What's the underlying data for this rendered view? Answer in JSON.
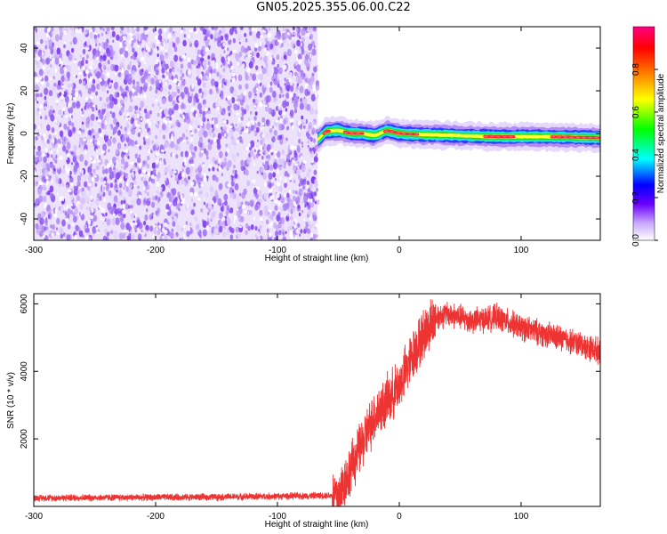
{
  "figure": {
    "title": "GN05.2025.355.06.00.C22"
  },
  "chart_data": [
    {
      "type": "heatmap",
      "xlabel": "Height of straight line (km)",
      "ylabel": "Frequency (Hz)",
      "xlim": [
        -300,
        165
      ],
      "ylim": [
        -50,
        50
      ],
      "xticks": [
        -300,
        -200,
        -100,
        0,
        100
      ],
      "yticks": [
        -40,
        -20,
        0,
        20,
        40
      ],
      "colorbar": {
        "label": "Normalized spectral amplitude",
        "range": [
          0.0,
          1.0
        ],
        "ticks": [
          0.0,
          0.2,
          0.4,
          0.6,
          0.8
        ],
        "tick_labels": [
          "0.0",
          "0.2",
          "0.4",
          "0.6",
          "0.8"
        ],
        "colormap": [
          "#ffffff",
          "#6a00ff",
          "#0000ff",
          "#00ffff",
          "#00ff00",
          "#ffff00",
          "#ff7f00",
          "#ff0000",
          "#ff0080"
        ]
      },
      "noise_region": {
        "x_range": [
          -300,
          -67
        ],
        "level": "low (0.0-0.25)"
      },
      "signal_band": {
        "x_range": [
          -67,
          165
        ],
        "center_frequency_trace": [
          {
            "x": -67,
            "y": -3
          },
          {
            "x": -60,
            "y": 1
          },
          {
            "x": -50,
            "y": 1.5
          },
          {
            "x": -40,
            "y": 0
          },
          {
            "x": -30,
            "y": 0
          },
          {
            "x": -20,
            "y": -1
          },
          {
            "x": -10,
            "y": 1.5
          },
          {
            "x": 0,
            "y": 0
          },
          {
            "x": 20,
            "y": -0.5
          },
          {
            "x": 50,
            "y": -1
          },
          {
            "x": 80,
            "y": -1.5
          },
          {
            "x": 120,
            "y": -1.5
          },
          {
            "x": 165,
            "y": -2
          }
        ],
        "peak_segments": [
          [
            -62,
            -57
          ],
          [
            -45,
            -30
          ],
          [
            -12,
            15
          ],
          [
            70,
            95
          ],
          [
            125,
            165
          ]
        ]
      }
    },
    {
      "type": "line",
      "xlabel": "Height of straight line (km)",
      "ylabel": "SNR (10 * v/v)",
      "xlim": [
        -300,
        165
      ],
      "ylim": [
        0,
        6300
      ],
      "xticks": [
        -300,
        -200,
        -100,
        0,
        100
      ],
      "yticks": [
        2000,
        4000,
        6000
      ],
      "color": "#ee3333",
      "series": [
        {
          "x": [
            -300,
            -250,
            -200,
            -150,
            -100,
            -70,
            -50,
            -40,
            -30,
            -20,
            -10,
            0,
            10,
            20,
            30,
            40,
            60,
            80,
            100,
            120,
            140,
            165
          ],
          "values": [
            250,
            260,
            270,
            280,
            300,
            320,
            330,
            1100,
            1900,
            2700,
            3100,
            3600,
            4400,
            5100,
            5600,
            5700,
            5500,
            5600,
            5300,
            5100,
            4900,
            4600
          ]
        }
      ]
    }
  ]
}
